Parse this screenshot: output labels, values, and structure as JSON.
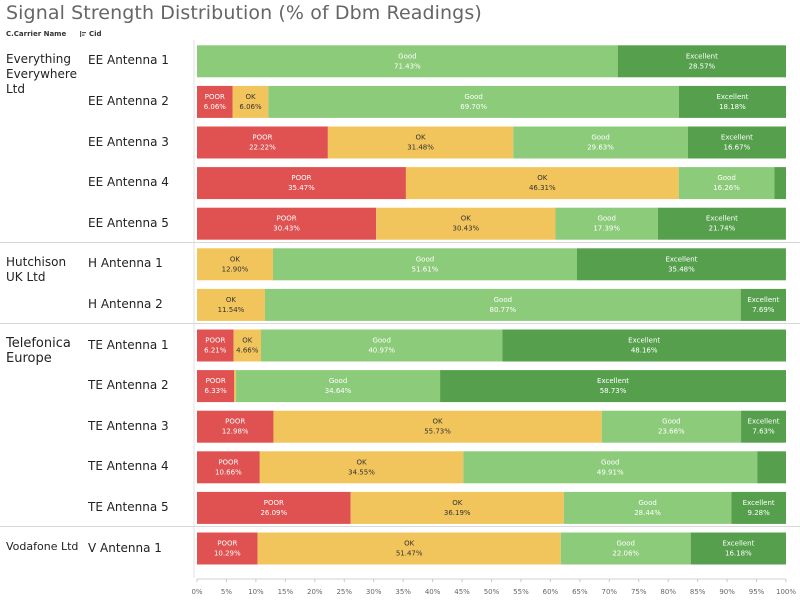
{
  "header": {
    "title": "Signal Strength Distribution (% of Dbm Readings)",
    "col_carrier": "C.Carrier Name",
    "col_cid": "Cid"
  },
  "colors": {
    "POOR": "#e05151",
    "OK": "#f2c55c",
    "Good": "#8ccb7a",
    "Excellent": "#56a04d"
  },
  "chart_data": {
    "type": "bar",
    "orientation": "horizontal",
    "stacked": true,
    "title": "Signal Strength Distribution (% of Dbm Readings)",
    "xlim": [
      0,
      100
    ],
    "x_ticks": [
      "0%",
      "5%",
      "10%",
      "15%",
      "20%",
      "25%",
      "30%",
      "35%",
      "40%",
      "45%",
      "50%",
      "55%",
      "60%",
      "65%",
      "70%",
      "75%",
      "80%",
      "85%",
      "90%",
      "95%",
      "100%"
    ],
    "categories_order": [
      "POOR",
      "OK",
      "Good",
      "Excellent"
    ],
    "groups": [
      {
        "carrier": "Everything Everywhere Ltd",
        "antennas": [
          {
            "name": "EE Antenna 1",
            "segments": [
              {
                "cat": "Good",
                "value": 71.43,
                "label": "71.43%"
              },
              {
                "cat": "Excellent",
                "value": 28.57,
                "label": "28.57%"
              }
            ]
          },
          {
            "name": "EE Antenna 2",
            "segments": [
              {
                "cat": "POOR",
                "value": 6.06,
                "label": "6.06%"
              },
              {
                "cat": "OK",
                "value": 6.06,
                "label": "6.06%"
              },
              {
                "cat": "Good",
                "value": 69.7,
                "label": "69.70%"
              },
              {
                "cat": "Excellent",
                "value": 18.18,
                "label": "18.18%"
              }
            ]
          },
          {
            "name": "EE Antenna 3",
            "segments": [
              {
                "cat": "POOR",
                "value": 22.22,
                "label": "22.22%"
              },
              {
                "cat": "OK",
                "value": 31.48,
                "label": "31.48%"
              },
              {
                "cat": "Good",
                "value": 29.63,
                "label": "29.63%"
              },
              {
                "cat": "Excellent",
                "value": 16.67,
                "label": "16.67%"
              }
            ]
          },
          {
            "name": "EE Antenna 4",
            "segments": [
              {
                "cat": "POOR",
                "value": 35.47,
                "label": "35.47%"
              },
              {
                "cat": "OK",
                "value": 46.31,
                "label": "46.31%"
              },
              {
                "cat": "Good",
                "value": 16.26,
                "label": "16.26%"
              },
              {
                "cat": "Excellent",
                "value": 1.96,
                "label": ""
              }
            ]
          },
          {
            "name": "EE Antenna 5",
            "segments": [
              {
                "cat": "POOR",
                "value": 30.43,
                "label": "30.43%"
              },
              {
                "cat": "OK",
                "value": 30.43,
                "label": "30.43%"
              },
              {
                "cat": "Good",
                "value": 17.39,
                "label": "17.39%"
              },
              {
                "cat": "Excellent",
                "value": 21.74,
                "label": "21.74%"
              }
            ]
          }
        ]
      },
      {
        "carrier": "Hutchison UK Ltd",
        "antennas": [
          {
            "name": "H Antenna 1",
            "segments": [
              {
                "cat": "OK",
                "value": 12.9,
                "label": "12.90%"
              },
              {
                "cat": "Good",
                "value": 51.61,
                "label": "51.61%"
              },
              {
                "cat": "Excellent",
                "value": 35.48,
                "label": "35.48%"
              }
            ]
          },
          {
            "name": "H Antenna 2",
            "segments": [
              {
                "cat": "OK",
                "value": 11.54,
                "label": "11.54%"
              },
              {
                "cat": "Good",
                "value": 80.77,
                "label": "80.77%"
              },
              {
                "cat": "Excellent",
                "value": 7.69,
                "label": "7.69%"
              }
            ]
          }
        ]
      },
      {
        "carrier": "Telefonica Europe",
        "antennas": [
          {
            "name": "TE Antenna 1",
            "segments": [
              {
                "cat": "POOR",
                "value": 6.21,
                "label": "6.21%"
              },
              {
                "cat": "OK",
                "value": 4.66,
                "label": "4.66%"
              },
              {
                "cat": "Good",
                "value": 40.97,
                "label": "40.97%"
              },
              {
                "cat": "Excellent",
                "value": 48.16,
                "label": "48.16%"
              }
            ]
          },
          {
            "name": "TE Antenna 2",
            "segments": [
              {
                "cat": "POOR",
                "value": 6.33,
                "label": "6.33%"
              },
              {
                "cat": "OK",
                "value": 0.3,
                "label": ""
              },
              {
                "cat": "Good",
                "value": 34.64,
                "label": "34.64%"
              },
              {
                "cat": "Excellent",
                "value": 58.73,
                "label": "58.73%"
              }
            ]
          },
          {
            "name": "TE Antenna 3",
            "segments": [
              {
                "cat": "POOR",
                "value": 12.98,
                "label": "12.98%"
              },
              {
                "cat": "OK",
                "value": 55.73,
                "label": "55.73%"
              },
              {
                "cat": "Good",
                "value": 23.66,
                "label": "23.66%"
              },
              {
                "cat": "Excellent",
                "value": 7.63,
                "label": "7.63%"
              }
            ]
          },
          {
            "name": "TE Antenna 4",
            "segments": [
              {
                "cat": "POOR",
                "value": 10.66,
                "label": "10.66%"
              },
              {
                "cat": "OK",
                "value": 34.55,
                "label": "34.55%"
              },
              {
                "cat": "Good",
                "value": 49.91,
                "label": "49.91%"
              },
              {
                "cat": "Excellent",
                "value": 4.88,
                "label": ""
              }
            ]
          },
          {
            "name": "TE Antenna 5",
            "segments": [
              {
                "cat": "POOR",
                "value": 26.09,
                "label": "26.09%"
              },
              {
                "cat": "OK",
                "value": 36.19,
                "label": "36.19%"
              },
              {
                "cat": "Good",
                "value": 28.44,
                "label": "28.44%"
              },
              {
                "cat": "Excellent",
                "value": 9.28,
                "label": "9.28%"
              }
            ]
          }
        ]
      },
      {
        "carrier": "Vodafone Ltd",
        "antennas": [
          {
            "name": "V Antenna 1",
            "segments": [
              {
                "cat": "POOR",
                "value": 10.29,
                "label": "10.29%"
              },
              {
                "cat": "OK",
                "value": 51.47,
                "label": "51.47%"
              },
              {
                "cat": "Good",
                "value": 22.06,
                "label": "22.06%"
              },
              {
                "cat": "Excellent",
                "value": 16.18,
                "label": "16.18%"
              }
            ]
          }
        ]
      }
    ]
  }
}
